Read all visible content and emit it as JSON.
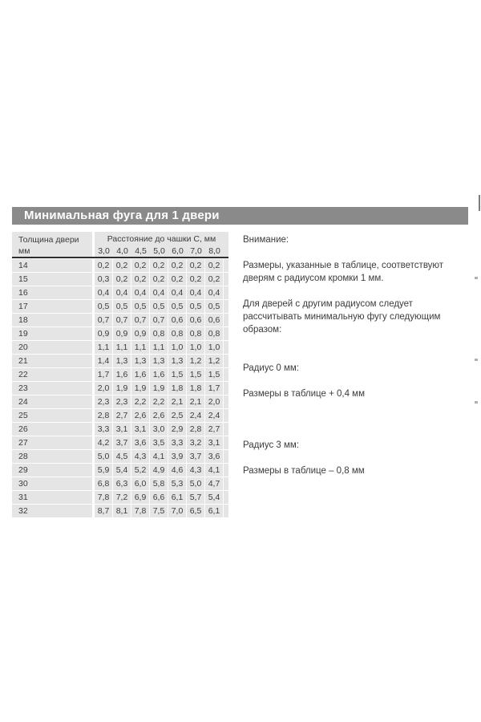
{
  "colors": {
    "title_bar": "#8a8a8a",
    "table_background": "#e5e5e5",
    "header_rule": "#2e2e2e",
    "body_text": "#3c3c3c",
    "title_text": "#ffffff"
  },
  "section": {
    "title": "Минимальная фуга для 1 двери"
  },
  "table": {
    "col1_header": "Толщина двери\nмм",
    "group_header": "Расстояние до чашки C, мм",
    "column_headers": [
      "3,0",
      "4,0",
      "4,5",
      "5,0",
      "6,0",
      "7,0",
      "8,0"
    ],
    "rows": [
      {
        "thickness": "14",
        "values": [
          "0,2",
          "0,2",
          "0,2",
          "0,2",
          "0,2",
          "0,2",
          "0,2"
        ]
      },
      {
        "thickness": "15",
        "values": [
          "0,3",
          "0,2",
          "0,2",
          "0,2",
          "0,2",
          "0,2",
          "0,2"
        ]
      },
      {
        "thickness": "16",
        "values": [
          "0,4",
          "0,4",
          "0,4",
          "0,4",
          "0,4",
          "0,4",
          "0,4"
        ]
      },
      {
        "thickness": "17",
        "values": [
          "0,5",
          "0,5",
          "0,5",
          "0,5",
          "0,5",
          "0,5",
          "0,5"
        ]
      },
      {
        "thickness": "18",
        "values": [
          "0,7",
          "0,7",
          "0,7",
          "0,7",
          "0,6",
          "0,6",
          "0,6"
        ]
      },
      {
        "thickness": "19",
        "values": [
          "0,9",
          "0,9",
          "0,9",
          "0,8",
          "0,8",
          "0,8",
          "0,8"
        ]
      },
      {
        "thickness": "20",
        "values": [
          "1,1",
          "1,1",
          "1,1",
          "1,1",
          "1,0",
          "1,0",
          "1,0"
        ]
      },
      {
        "thickness": "21",
        "values": [
          "1,4",
          "1,3",
          "1,3",
          "1,3",
          "1,3",
          "1,2",
          "1,2"
        ]
      },
      {
        "thickness": "22",
        "values": [
          "1,7",
          "1,6",
          "1,6",
          "1,6",
          "1,5",
          "1,5",
          "1,5"
        ]
      },
      {
        "thickness": "23",
        "values": [
          "2,0",
          "1,9",
          "1,9",
          "1,9",
          "1,8",
          "1,8",
          "1,7"
        ]
      },
      {
        "thickness": "24",
        "values": [
          "2,3",
          "2,3",
          "2,2",
          "2,2",
          "2,1",
          "2,1",
          "2,0"
        ]
      },
      {
        "thickness": "25",
        "values": [
          "2,8",
          "2,7",
          "2,6",
          "2,6",
          "2,5",
          "2,4",
          "2,4"
        ]
      },
      {
        "thickness": "26",
        "values": [
          "3,3",
          "3,1",
          "3,1",
          "3,0",
          "2,9",
          "2,8",
          "2,7"
        ]
      },
      {
        "thickness": "27",
        "values": [
          "4,2",
          "3,7",
          "3,6",
          "3,5",
          "3,3",
          "3,2",
          "3,1"
        ]
      },
      {
        "thickness": "28",
        "values": [
          "5,0",
          "4,5",
          "4,3",
          "4,1",
          "3,9",
          "3,7",
          "3,6"
        ]
      },
      {
        "thickness": "29",
        "values": [
          "5,9",
          "5,4",
          "5,2",
          "4,9",
          "4,6",
          "4,3",
          "4,1"
        ]
      },
      {
        "thickness": "30",
        "values": [
          "6,8",
          "6,3",
          "6,0",
          "5,8",
          "5,3",
          "5,0",
          "4,7"
        ]
      },
      {
        "thickness": "31",
        "values": [
          "7,8",
          "7,2",
          "6,9",
          "6,6",
          "6,1",
          "5,7",
          "5,4"
        ]
      },
      {
        "thickness": "32",
        "values": [
          "8,7",
          "8,1",
          "7,8",
          "7,5",
          "7,0",
          "6,5",
          "6,1"
        ]
      }
    ]
  },
  "note": {
    "heading": "Внимание:",
    "para1": "Размеры, указанные в таблице, соответствуют\nдверям с радиусом кромки 1 мм.",
    "para2": "Для дверей с другим радиусом следует\nрассчитывать минимальную фугу следующим\nобразом:",
    "radius0_label": "Радиус 0 мм:",
    "radius0_value": "Размеры в таблице + 0,4 мм",
    "radius3_label": "Радиус 3 мм:",
    "radius3_value": "Размеры в таблице – 0,8 мм"
  }
}
